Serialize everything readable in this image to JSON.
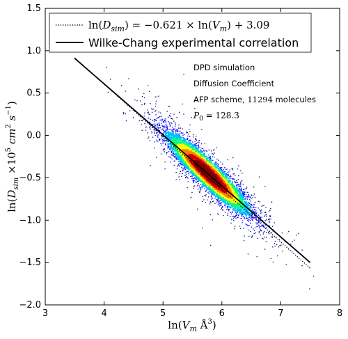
{
  "chart_data": {
    "type": "scatter",
    "xlabel": "ln(V_m Å^3)",
    "ylabel": "ln(D_sim ×10^5 cm^2 s^-1)",
    "xlim": [
      3,
      8
    ],
    "ylim": [
      -2.0,
      1.5
    ],
    "xticks": [
      "3",
      "4",
      "5",
      "6",
      "7",
      "8"
    ],
    "yticks": [
      "1.5",
      "1.0",
      "0.5",
      "0.0",
      "−0.5",
      "−1.0",
      "−1.5",
      "−2.0"
    ],
    "grid": false,
    "legend_position": "top-left",
    "fit_line": {
      "name": "ln(D_sim) = −0.621 × ln(V_m) + 3.09",
      "slope": -0.621,
      "intercept": 3.09,
      "x_range": [
        3.5,
        7.5
      ],
      "style": "dotted"
    },
    "reference_line": {
      "name": "Wilke-Chang experimental correlation",
      "points": [
        [
          3.5,
          0.91
        ],
        [
          7.5,
          -1.5
        ]
      ],
      "style": "solid"
    },
    "density_scatter": {
      "n_points_shown": 11294,
      "center": [
        5.75,
        -0.44
      ],
      "slope": -0.621,
      "x_spread": 0.42,
      "y_residual_spread": 0.11,
      "colormap": [
        "#000080",
        "#0000ff",
        "#00bfff",
        "#00ff80",
        "#ffff00",
        "#ff8000",
        "#cc0000",
        "#800000"
      ]
    },
    "annotations": [
      {
        "text": "DPD simulation"
      },
      {
        "text": "Diffusion Coefficient"
      },
      {
        "text": "AFP scheme, 11294 molecules"
      },
      {
        "text": "P_0 = 128.3"
      }
    ]
  },
  "legend": {
    "fit_label_parts": {
      "pre": "ln(",
      "sym": "D",
      "sub": "sim",
      "mid": ") = −0.621 × ln(",
      "sym2": "V",
      "sub2": "m",
      "post": ") + 3.09"
    },
    "ref_label": "Wilke-Chang experimental correlation"
  },
  "axes": {
    "xlabel_parts": {
      "pre": "ln(",
      "sym": "V",
      "sub": "m",
      "unit": " Å",
      "sup": "3",
      "post": ")"
    },
    "ylabel_parts": {
      "pre": "ln(",
      "sym": "D",
      "sub": "sim",
      "mid": " ×10",
      "sup1": "5",
      "cm": " cm",
      "sup2": "2",
      "s": " s",
      "sup3": "−1",
      "post": ")"
    }
  },
  "annotations": {
    "line1": "DPD simulation",
    "line2": "Diffusion Coefficient",
    "line3_pre": "AFP scheme, ",
    "line3_num": "11294",
    "line3_post": " molecules",
    "p0_sym": "P",
    "p0_sub": "0",
    "p0_val": " = 128.3"
  }
}
